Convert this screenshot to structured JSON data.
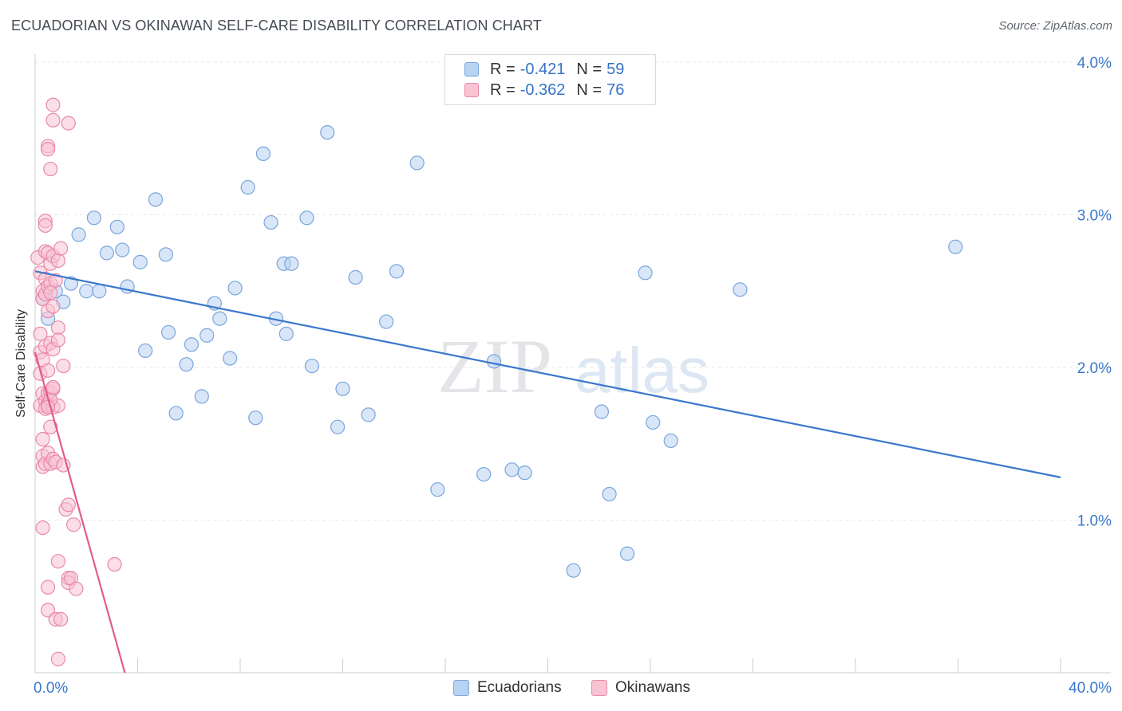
{
  "title": "ECUADORIAN VS OKINAWAN SELF-CARE DISABILITY CORRELATION CHART",
  "source": "Source: ZipAtlas.com",
  "watermark": {
    "part1": "ZIP",
    "part2": "atlas"
  },
  "legend": {
    "r_label": "R =",
    "n_label": "N =",
    "items": [
      {
        "r": "-0.421",
        "n": "59",
        "fill": "#b8d2f2",
        "stroke": "#7aa6dc"
      },
      {
        "r": "-0.362",
        "n": "76",
        "fill": "#f8c3d3",
        "stroke": "#e98aa9"
      }
    ]
  },
  "chart_data": {
    "type": "scatter",
    "title": "ECUADORIAN VS OKINAWAN SELF-CARE DISABILITY CORRELATION CHART",
    "xlabel": "",
    "ylabel": "Self-Care Disability",
    "xlim": [
      0,
      40
    ],
    "ylim": [
      0,
      4.2
    ],
    "x_tick_labels": [
      "0.0%",
      "40.0%"
    ],
    "y_ticks": [
      1.0,
      2.0,
      3.0,
      4.0
    ],
    "y_tick_labels": [
      "1.0%",
      "2.0%",
      "3.0%",
      "4.0%"
    ],
    "grid": true,
    "series": [
      {
        "name": "Ecuadorians",
        "color": "#3a78cc",
        "fill": "#b8d2f2",
        "trend": {
          "x": [
            0.0,
            40.0
          ],
          "y": [
            2.63,
            1.28
          ]
        },
        "points": [
          [
            0.3,
            2.45
          ],
          [
            0.5,
            2.32
          ],
          [
            0.8,
            2.5
          ],
          [
            1.1,
            2.43
          ],
          [
            1.4,
            2.55
          ],
          [
            1.7,
            2.87
          ],
          [
            2.0,
            2.5
          ],
          [
            2.3,
            2.98
          ],
          [
            2.5,
            2.5
          ],
          [
            2.8,
            2.75
          ],
          [
            3.2,
            2.92
          ],
          [
            3.4,
            2.77
          ],
          [
            3.6,
            2.53
          ],
          [
            4.1,
            2.69
          ],
          [
            4.3,
            2.11
          ],
          [
            4.7,
            3.1
          ],
          [
            5.1,
            2.74
          ],
          [
            5.2,
            2.23
          ],
          [
            5.5,
            1.7
          ],
          [
            5.9,
            2.02
          ],
          [
            6.1,
            2.15
          ],
          [
            6.5,
            1.81
          ],
          [
            6.7,
            2.21
          ],
          [
            7.0,
            2.42
          ],
          [
            7.2,
            2.32
          ],
          [
            7.6,
            2.06
          ],
          [
            7.8,
            2.52
          ],
          [
            8.3,
            3.18
          ],
          [
            8.6,
            1.67
          ],
          [
            8.9,
            3.4
          ],
          [
            9.2,
            2.95
          ],
          [
            9.4,
            2.32
          ],
          [
            9.7,
            2.68
          ],
          [
            9.8,
            2.22
          ],
          [
            10.0,
            2.68
          ],
          [
            10.6,
            2.98
          ],
          [
            10.8,
            2.01
          ],
          [
            11.4,
            3.54
          ],
          [
            11.8,
            1.61
          ],
          [
            12.0,
            1.86
          ],
          [
            12.5,
            2.59
          ],
          [
            13.0,
            1.69
          ],
          [
            13.7,
            2.3
          ],
          [
            14.1,
            2.63
          ],
          [
            14.9,
            3.34
          ],
          [
            15.7,
            1.2
          ],
          [
            17.9,
            2.04
          ],
          [
            17.5,
            1.3
          ],
          [
            18.6,
            1.33
          ],
          [
            19.1,
            1.31
          ],
          [
            21.0,
            0.67
          ],
          [
            22.1,
            1.71
          ],
          [
            22.4,
            1.17
          ],
          [
            23.1,
            0.78
          ],
          [
            23.8,
            2.62
          ],
          [
            24.1,
            1.64
          ],
          [
            24.8,
            1.52
          ],
          [
            27.5,
            2.51
          ],
          [
            35.9,
            2.79
          ]
        ]
      },
      {
        "name": "Okinawans",
        "color": "#e25b8c",
        "fill": "#f8c3d3",
        "trend": {
          "x": [
            0.0,
            3.5
          ],
          "y": [
            2.1,
            0.0
          ]
        },
        "points": [
          [
            0.1,
            2.72
          ],
          [
            0.2,
            2.62
          ],
          [
            0.2,
            2.22
          ],
          [
            0.2,
            2.1
          ],
          [
            0.2,
            1.96
          ],
          [
            0.2,
            1.75
          ],
          [
            0.3,
            2.5
          ],
          [
            0.3,
            2.45
          ],
          [
            0.3,
            2.05
          ],
          [
            0.3,
            1.83
          ],
          [
            0.3,
            1.42
          ],
          [
            0.3,
            1.35
          ],
          [
            0.3,
            0.95
          ],
          [
            0.3,
            1.53
          ],
          [
            0.4,
            2.76
          ],
          [
            0.4,
            2.58
          ],
          [
            0.4,
            2.48
          ],
          [
            0.4,
            2.14
          ],
          [
            0.4,
            1.78
          ],
          [
            0.4,
            1.73
          ],
          [
            0.4,
            1.37
          ],
          [
            0.4,
            2.96
          ],
          [
            0.4,
            2.93
          ],
          [
            0.5,
            3.45
          ],
          [
            0.5,
            3.43
          ],
          [
            0.5,
            2.75
          ],
          [
            0.5,
            2.53
          ],
          [
            0.5,
            2.37
          ],
          [
            0.5,
            1.98
          ],
          [
            0.5,
            1.76
          ],
          [
            0.5,
            1.83
          ],
          [
            0.5,
            1.44
          ],
          [
            0.5,
            0.56
          ],
          [
            0.5,
            0.41
          ],
          [
            0.6,
            3.3
          ],
          [
            0.6,
            2.68
          ],
          [
            0.6,
            2.55
          ],
          [
            0.6,
            2.16
          ],
          [
            0.6,
            1.84
          ],
          [
            0.6,
            1.61
          ],
          [
            0.6,
            1.37
          ],
          [
            0.5,
            1.75
          ],
          [
            0.7,
            3.72
          ],
          [
            0.7,
            3.62
          ],
          [
            0.7,
            2.73
          ],
          [
            0.7,
            2.4
          ],
          [
            0.7,
            2.12
          ],
          [
            0.7,
            1.86
          ],
          [
            0.7,
            1.74
          ],
          [
            0.7,
            1.4
          ],
          [
            0.8,
            2.57
          ],
          [
            0.8,
            1.38
          ],
          [
            0.8,
            0.35
          ],
          [
            0.9,
            2.7
          ],
          [
            0.9,
            2.26
          ],
          [
            0.9,
            2.18
          ],
          [
            0.9,
            1.75
          ],
          [
            0.9,
            0.09
          ],
          [
            0.9,
            0.73
          ],
          [
            1.0,
            2.78
          ],
          [
            1.0,
            0.35
          ],
          [
            1.1,
            2.01
          ],
          [
            1.2,
            1.07
          ],
          [
            1.3,
            1.1
          ],
          [
            1.3,
            0.62
          ],
          [
            1.3,
            0.59
          ],
          [
            1.3,
            3.6
          ],
          [
            1.4,
            0.62
          ],
          [
            1.5,
            0.97
          ],
          [
            1.6,
            0.55
          ],
          [
            0.6,
            1.79
          ],
          [
            0.5,
            1.74
          ],
          [
            0.6,
            2.49
          ],
          [
            1.1,
            1.36
          ],
          [
            3.1,
            0.71
          ],
          [
            0.7,
            1.87
          ]
        ]
      }
    ],
    "legend": [
      "Ecuadorians",
      "Okinawans"
    ],
    "legend_position": "top-center"
  }
}
